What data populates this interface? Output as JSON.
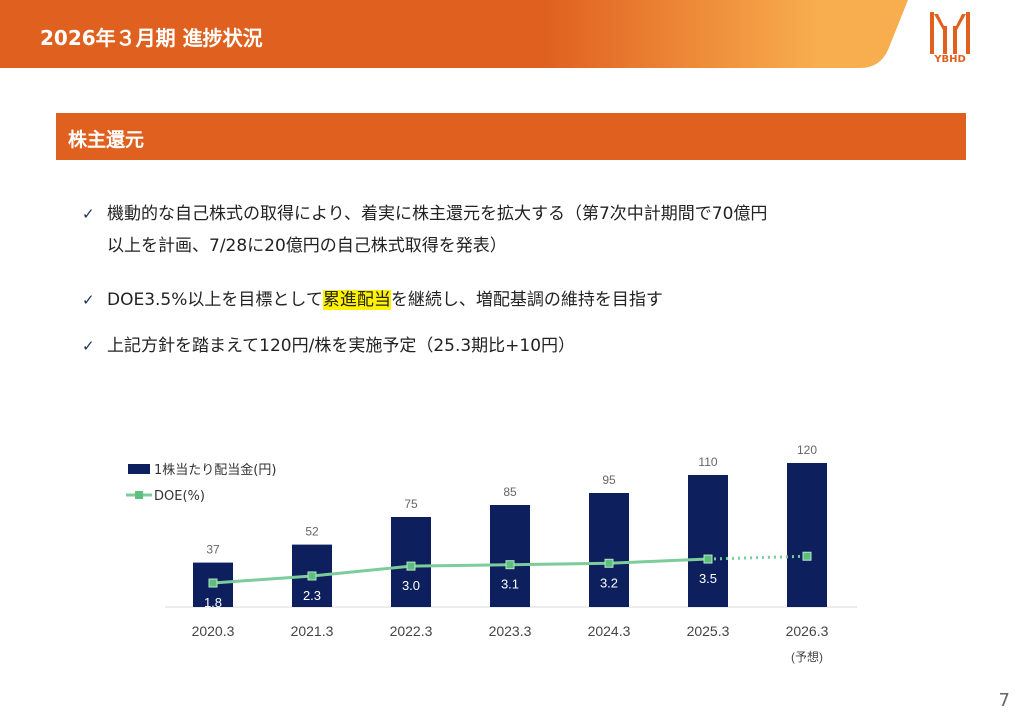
{
  "header": {
    "title": "2026年３月期 進捗状況",
    "logo_text": "YBHD"
  },
  "section": {
    "title": "株主還元"
  },
  "bullets": [
    {
      "line1": "機動的な自己株式の取得により、着実に株主還元を拡大する（第7次中計期間で70億円",
      "line2": "以上を計画、7/28に20億円の自己株式取得を発表）"
    },
    {
      "pre": "DOE3.5%以上を目標として",
      "highlight": "累進配当",
      "post": "を継続し、増配基調の維持を目指す"
    },
    {
      "line1": "上記方針を踏まえて120円/株を実施予定（25.3期比+10円）"
    }
  ],
  "check_icon": "✓",
  "page_number": "7",
  "chart_data": {
    "type": "bar",
    "categories": [
      "2020.3",
      "2021.3",
      "2022.3",
      "2023.3",
      "2024.3",
      "2025.3",
      "2026.3"
    ],
    "category_notes": [
      "",
      "",
      "",
      "",
      "",
      "",
      "(予想)"
    ],
    "series": [
      {
        "name": "1株当たり配当金(円)",
        "type": "bar",
        "color": "#0d1f5c",
        "values": [
          37,
          52,
          75,
          85,
          95,
          110,
          120
        ],
        "labels": [
          "37",
          "52",
          "75",
          "85",
          "95",
          "110",
          "120"
        ]
      },
      {
        "name": "DOE(%)",
        "type": "line",
        "color": "#7ccc9c",
        "values": [
          1.8,
          2.3,
          3.0,
          3.1,
          3.2,
          3.5,
          3.7
        ],
        "labels": [
          "1.8",
          "2.3",
          "3.0",
          "3.1",
          "3.2",
          "3.5",
          ""
        ],
        "dotted_last_segment": true
      }
    ],
    "legend": "top-left"
  }
}
